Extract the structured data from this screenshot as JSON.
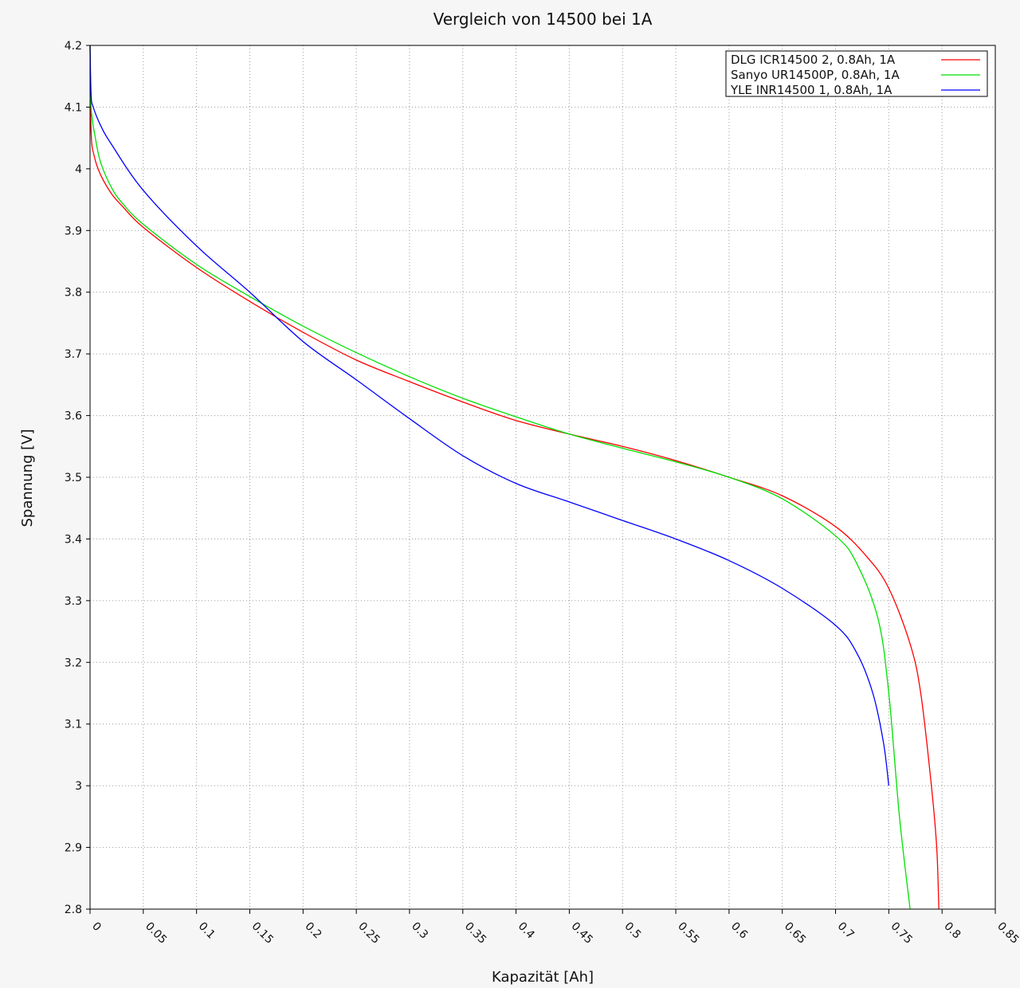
{
  "chart_data": {
    "type": "line",
    "title": "Vergleich von 14500 bei 1A",
    "xlabel": "Kapazität [Ah]",
    "ylabel": "Spannung [V]",
    "xlim": [
      0,
      0.85
    ],
    "ylim": [
      2.8,
      4.2
    ],
    "grid": true,
    "legend_position": "top-right",
    "x_ticks": [
      "0",
      "0.05",
      "0.1",
      "0.15",
      "0.2",
      "0.25",
      "0.3",
      "0.35",
      "0.4",
      "0.45",
      "0.5",
      "0.55",
      "0.6",
      "0.65",
      "0.7",
      "0.75",
      "0.8",
      "0.85"
    ],
    "y_ticks": [
      "2.8",
      "2.9",
      "3",
      "3.1",
      "3.2",
      "3.3",
      "3.4",
      "3.5",
      "3.6",
      "3.7",
      "3.8",
      "3.9",
      "4",
      "4.1",
      "4.2"
    ],
    "series": [
      {
        "name": "DLG ICR14500 2, 0.8Ah, 1A",
        "color": "#ff0000",
        "points": [
          [
            0,
            4.2
          ],
          [
            0.001,
            4.06
          ],
          [
            0.004,
            4.02
          ],
          [
            0.01,
            3.99
          ],
          [
            0.02,
            3.96
          ],
          [
            0.03,
            3.94
          ],
          [
            0.05,
            3.905
          ],
          [
            0.1,
            3.84
          ],
          [
            0.15,
            3.785
          ],
          [
            0.2,
            3.735
          ],
          [
            0.25,
            3.69
          ],
          [
            0.3,
            3.655
          ],
          [
            0.35,
            3.622
          ],
          [
            0.4,
            3.592
          ],
          [
            0.45,
            3.57
          ],
          [
            0.5,
            3.55
          ],
          [
            0.55,
            3.527
          ],
          [
            0.6,
            3.5
          ],
          [
            0.65,
            3.47
          ],
          [
            0.7,
            3.42
          ],
          [
            0.73,
            3.37
          ],
          [
            0.75,
            3.32
          ],
          [
            0.77,
            3.23
          ],
          [
            0.78,
            3.15
          ],
          [
            0.79,
            3.0
          ],
          [
            0.795,
            2.9
          ],
          [
            0.797,
            2.8
          ]
        ]
      },
      {
        "name": "Sanyo UR14500P, 0.8Ah, 1A",
        "color": "#00e000",
        "points": [
          [
            0,
            4.2
          ],
          [
            0.001,
            4.1
          ],
          [
            0.005,
            4.05
          ],
          [
            0.01,
            4.01
          ],
          [
            0.02,
            3.97
          ],
          [
            0.03,
            3.945
          ],
          [
            0.05,
            3.91
          ],
          [
            0.1,
            3.845
          ],
          [
            0.15,
            3.793
          ],
          [
            0.2,
            3.745
          ],
          [
            0.25,
            3.702
          ],
          [
            0.3,
            3.663
          ],
          [
            0.35,
            3.628
          ],
          [
            0.4,
            3.598
          ],
          [
            0.45,
            3.57
          ],
          [
            0.5,
            3.547
          ],
          [
            0.55,
            3.525
          ],
          [
            0.6,
            3.5
          ],
          [
            0.65,
            3.465
          ],
          [
            0.7,
            3.405
          ],
          [
            0.72,
            3.36
          ],
          [
            0.74,
            3.27
          ],
          [
            0.75,
            3.15
          ],
          [
            0.76,
            2.95
          ],
          [
            0.77,
            2.8
          ]
        ]
      },
      {
        "name": "YLE INR14500 1, 0.8Ah, 1A",
        "color": "#0000ff",
        "points": [
          [
            0,
            4.2
          ],
          [
            0.001,
            4.12
          ],
          [
            0.003,
            4.1
          ],
          [
            0.01,
            4.07
          ],
          [
            0.02,
            4.04
          ],
          [
            0.05,
            3.965
          ],
          [
            0.1,
            3.875
          ],
          [
            0.15,
            3.8
          ],
          [
            0.2,
            3.72
          ],
          [
            0.25,
            3.658
          ],
          [
            0.3,
            3.595
          ],
          [
            0.35,
            3.535
          ],
          [
            0.4,
            3.49
          ],
          [
            0.45,
            3.46
          ],
          [
            0.5,
            3.43
          ],
          [
            0.55,
            3.4
          ],
          [
            0.6,
            3.365
          ],
          [
            0.65,
            3.32
          ],
          [
            0.7,
            3.26
          ],
          [
            0.72,
            3.215
          ],
          [
            0.735,
            3.15
          ],
          [
            0.745,
            3.07
          ],
          [
            0.75,
            3.0
          ]
        ]
      }
    ]
  }
}
